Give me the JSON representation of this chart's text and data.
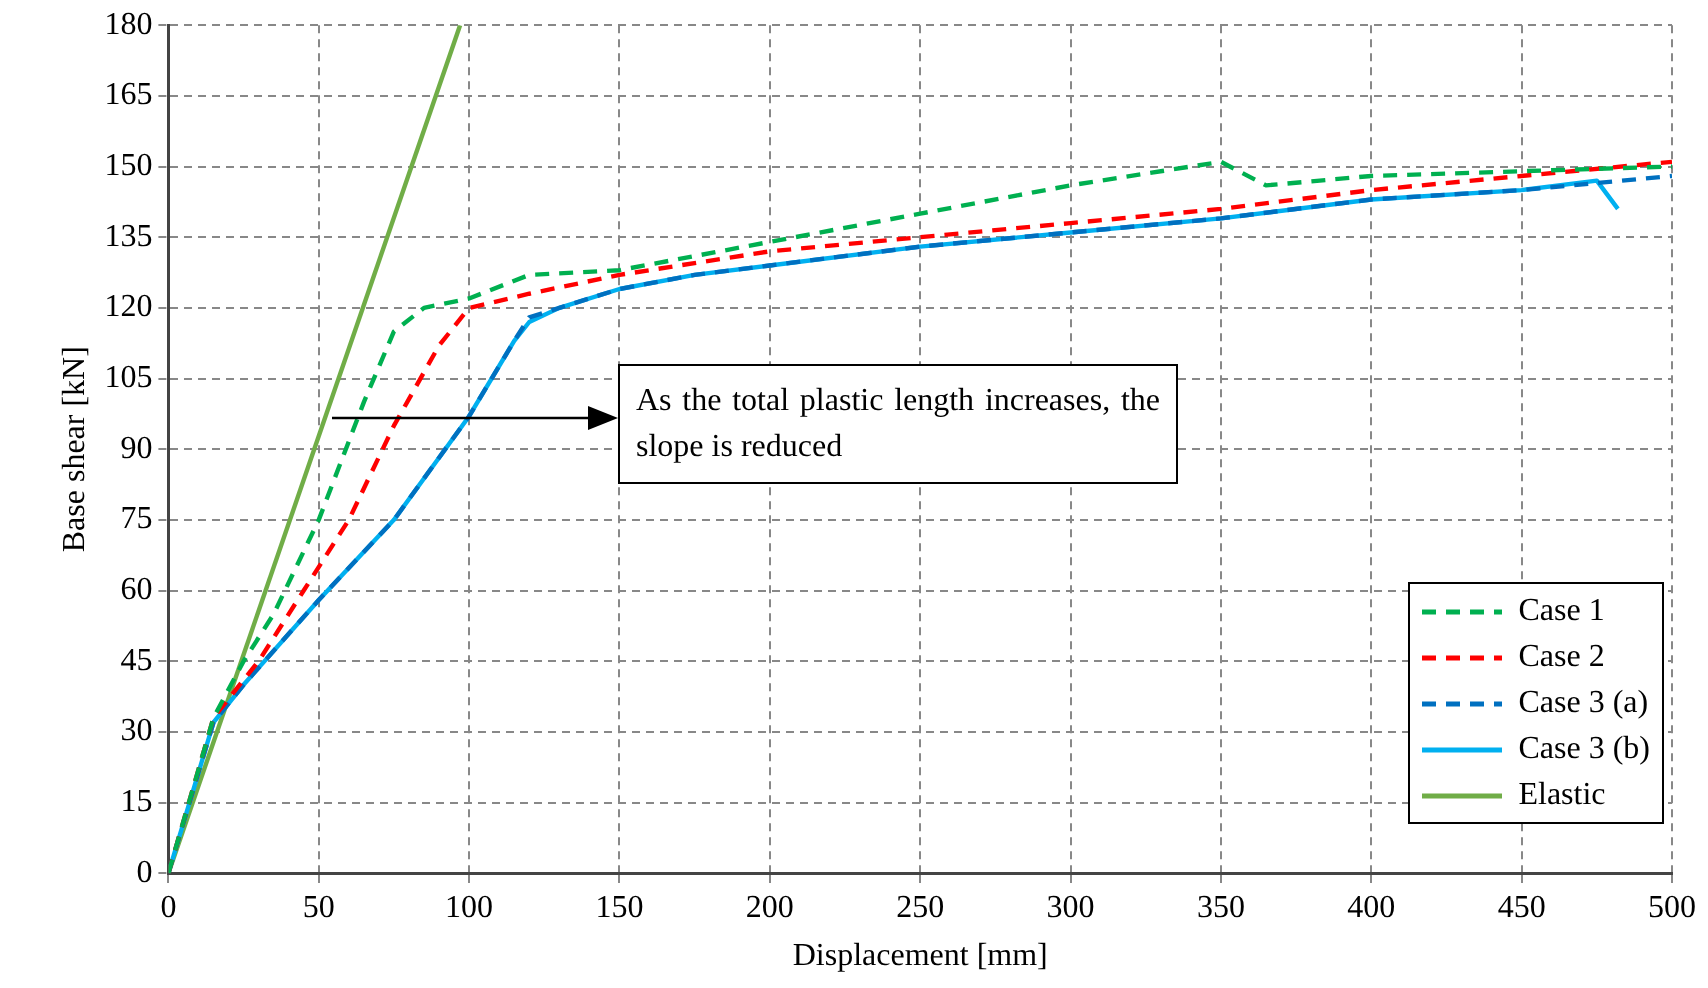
{
  "chart_data": {
    "type": "line",
    "xlabel": "Displacement [mm]",
    "ylabel": "Base shear [kN]",
    "xlim": [
      0,
      500
    ],
    "xticks": [
      0,
      50,
      100,
      150,
      200,
      250,
      300,
      350,
      400,
      450,
      500
    ],
    "ylim": [
      0,
      180
    ],
    "yticks": [
      0,
      15,
      30,
      45,
      60,
      75,
      90,
      105,
      120,
      135,
      150,
      165,
      180
    ],
    "grid": true,
    "legend": "bottom right",
    "marker": "none",
    "annotations": [
      "As the total plastic length increases, the slope is reduced"
    ],
    "series": [
      {
        "name": "Case 1",
        "color": "#00b050",
        "line_style": "dashed",
        "x": [
          0,
          15,
          25,
          35,
          50,
          65,
          75,
          85,
          100,
          120,
          150,
          200,
          250,
          300,
          350,
          365,
          400,
          450,
          500
        ],
        "values": [
          0,
          33,
          45,
          55,
          75,
          100,
          115,
          120,
          122,
          127,
          128,
          134,
          140,
          146,
          151,
          146,
          148,
          149,
          150
        ]
      },
      {
        "name": "Case 2",
        "color": "#ff0000",
        "line_style": "dashed",
        "x": [
          0,
          15,
          30,
          45,
          60,
          75,
          90,
          100,
          120,
          150,
          200,
          250,
          300,
          350,
          400,
          450,
          500
        ],
        "values": [
          0,
          33,
          45,
          60,
          75,
          95,
          112,
          120,
          123,
          127,
          132,
          135,
          138,
          141,
          145,
          148,
          151
        ]
      },
      {
        "name": "Case 3 (a)",
        "color": "#0070c0",
        "line_style": "dashed",
        "x": [
          0,
          15,
          25,
          50,
          75,
          100,
          115,
          120,
          130,
          150,
          175,
          200,
          250,
          300,
          350,
          400,
          450,
          500
        ],
        "values": [
          0,
          32,
          40,
          58,
          75,
          97,
          113,
          118,
          120,
          124,
          127,
          129,
          133,
          136,
          139,
          143,
          145,
          148
        ]
      },
      {
        "name": "Case 3 (b)",
        "color": "#00b0f0",
        "line_style": "solid",
        "x": [
          0,
          15,
          25,
          50,
          75,
          100,
          115,
          120,
          130,
          150,
          175,
          200,
          250,
          300,
          350,
          400,
          450,
          475,
          482
        ],
        "values": [
          0,
          32,
          40,
          58,
          75,
          97,
          113,
          117,
          120,
          124,
          127,
          129,
          133,
          136,
          139,
          143,
          145,
          147,
          141
        ]
      },
      {
        "name": "Elastic",
        "color": "#70ad47",
        "line_style": "solid",
        "x": [
          0,
          97
        ],
        "values": [
          0,
          180
        ]
      }
    ]
  }
}
